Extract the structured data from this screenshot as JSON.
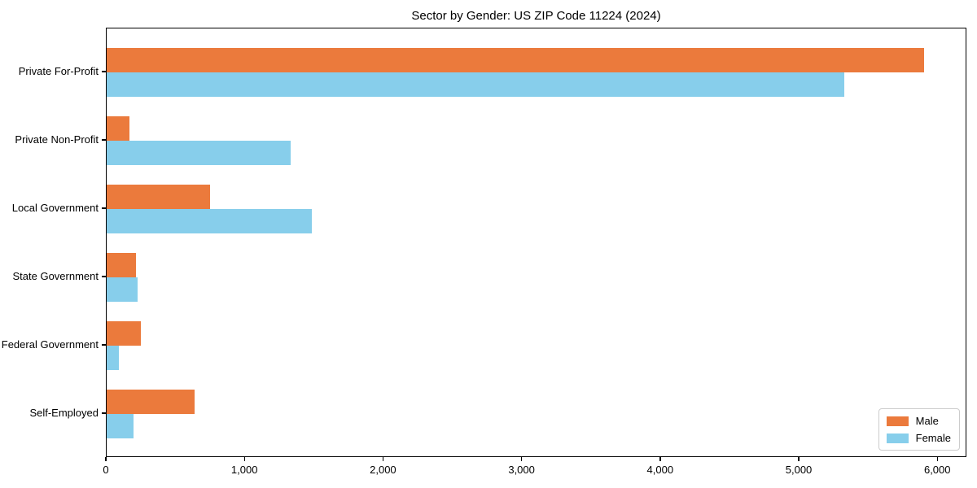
{
  "figure": {
    "background": "#ffffff",
    "border_color": "#000000",
    "legend_border_color": "#cccccc"
  },
  "chart_data": {
    "type": "bar",
    "orientation": "horizontal",
    "title": "Sector by Gender: US ZIP Code 11224 (2024)",
    "categories": [
      "Private For-Profit",
      "Private Non-Profit",
      "Local Government",
      "State Government",
      "Federal Government",
      "Self-Employed"
    ],
    "series": [
      {
        "name": "Male",
        "color": "#EB7A3C",
        "values": [
          5900,
          165,
          745,
          210,
          245,
          635
        ]
      },
      {
        "name": "Female",
        "color": "#87CEEB",
        "values": [
          5325,
          1330,
          1480,
          225,
          90,
          195
        ]
      }
    ],
    "xlabel": "",
    "ylabel": "",
    "xlim": [
      0,
      6210
    ],
    "xticks": {
      "values": [
        0,
        1000,
        2000,
        3000,
        4000,
        5000,
        6000
      ],
      "labels": [
        "0",
        "1,000",
        "2,000",
        "3,000",
        "4,000",
        "5,000",
        "6,000"
      ]
    },
    "grid": false,
    "legend": {
      "position": "lower right"
    }
  }
}
